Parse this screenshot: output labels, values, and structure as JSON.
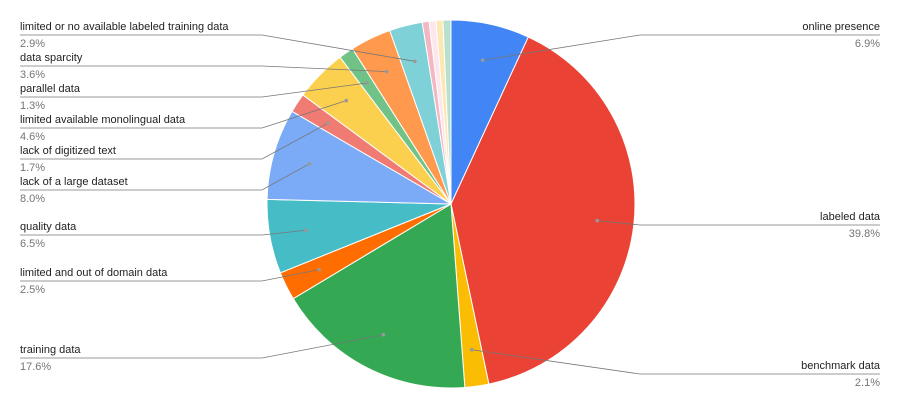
{
  "chart_data": {
    "type": "pie",
    "categories": [
      "online presence",
      "labeled data",
      "benchmark data",
      "training data",
      "limited and out of domain data",
      "quality data",
      "lack of a large dataset",
      "lack of digitized text",
      "limited available monolingual data",
      "parallel data",
      "data sparcity",
      "limited or no available labeled training data",
      null,
      null,
      null,
      null
    ],
    "values": [
      6.9,
      39.8,
      2.1,
      17.6,
      2.5,
      6.5,
      8.0,
      1.7,
      4.6,
      1.3,
      3.6,
      2.9,
      0.6,
      0.6,
      0.6,
      0.7
    ],
    "value_labels": [
      "6.9%",
      "39.8%",
      "2.1%",
      "17.6%",
      "2.5%",
      "6.5%",
      "8.0%",
      "1.7%",
      "4.6%",
      "1.3%",
      "3.6%",
      "2.9%",
      null,
      null,
      null,
      null
    ],
    "colors": [
      "#4285f4",
      "#ea4335",
      "#fbbc04",
      "#34a853",
      "#ff6d01",
      "#46bdc6",
      "#7baaf7",
      "#f07b72",
      "#fcd04f",
      "#71c287",
      "#ff994d",
      "#7ed1d7",
      "#f4b6c2",
      "#fde6ec",
      "#fce8b2",
      "#b7e1cd"
    ]
  }
}
